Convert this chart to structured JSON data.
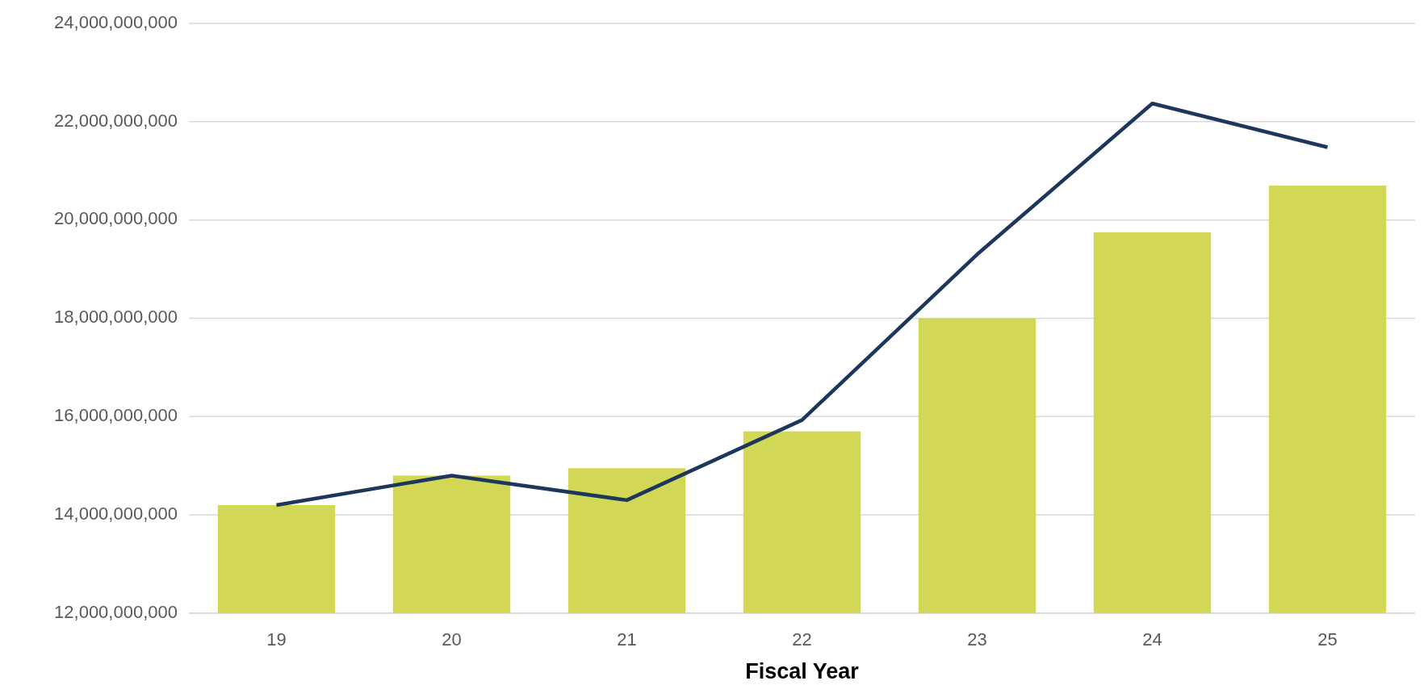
{
  "chart_data": {
    "type": "bar",
    "xlabel": "Fiscal Year",
    "categories": [
      "19",
      "20",
      "21",
      "22",
      "23",
      "24",
      "25"
    ],
    "series": [
      {
        "color": "#d2d755",
        "values": [
          14200000000,
          14800000000,
          14950000000,
          15700000000,
          18000000000,
          19750000000,
          20700000000
        ]
      },
      {
        "type": "line",
        "color": "#1c365c",
        "values": [
          14200000000,
          14800000000,
          14300000000,
          15930000000,
          19300000000,
          22370000000,
          21480000000
        ]
      }
    ],
    "ylim": [
      12000000000,
      24000000000
    ],
    "yticks": [
      {
        "value": 12000000000,
        "label": "12,000,000,000"
      },
      {
        "value": 14000000000,
        "label": "14,000,000,000"
      },
      {
        "value": 16000000000,
        "label": "16,000,000,000"
      },
      {
        "value": 18000000000,
        "label": "18,000,000,000"
      },
      {
        "value": 20000000000,
        "label": "20,000,000,000"
      },
      {
        "value": 22000000000,
        "label": "22,000,000,000"
      },
      {
        "value": 24000000000,
        "label": "24,000,000,000"
      }
    ],
    "grid": "y",
    "marker": "none",
    "line_style": "solid"
  }
}
